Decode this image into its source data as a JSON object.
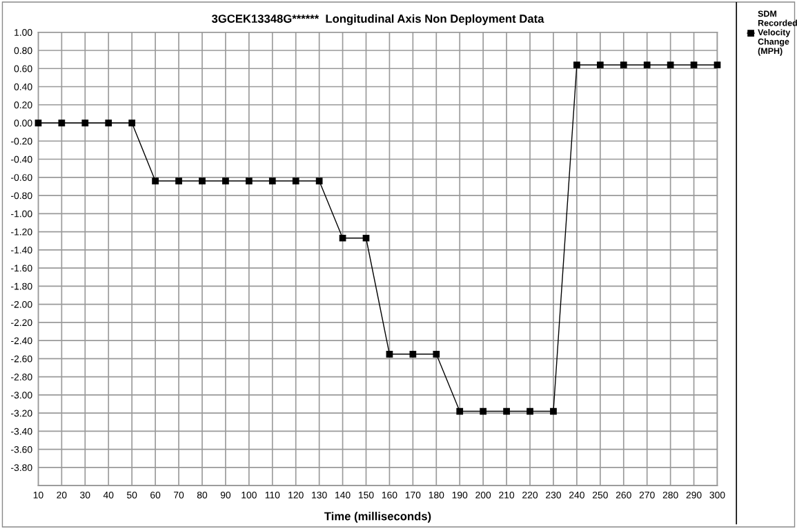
{
  "chart_data": {
    "type": "line",
    "title": "3GCEK13348G******  Longitudinal Axis Non Deployment Data",
    "xlabel": "Time (milliseconds)",
    "categories": [
      "10",
      "20",
      "30",
      "40",
      "50",
      "60",
      "70",
      "80",
      "90",
      "100",
      "110",
      "120",
      "130",
      "140",
      "150",
      "160",
      "170",
      "180",
      "190",
      "200",
      "210",
      "220",
      "230",
      "240",
      "250",
      "260",
      "270",
      "280",
      "290",
      "300"
    ],
    "series": [
      {
        "name": "SDM Recorded Velocity Change (MPH)",
        "color": "#000000",
        "values": [
          0,
          0,
          0,
          0,
          0,
          -0.64,
          -0.64,
          -0.64,
          -0.64,
          -0.64,
          -0.64,
          -0.64,
          -0.64,
          -1.27,
          -1.27,
          -2.55,
          -2.55,
          -2.55,
          -3.18,
          -3.18,
          -3.18,
          -3.18,
          -3.18,
          0.64,
          0.64,
          0.64,
          0.64,
          0.64,
          0.64,
          0.64
        ]
      }
    ],
    "ylim": [
      -4.0,
      1.0
    ],
    "yticks": [
      {
        "value": 1.0,
        "label": "1.00"
      },
      {
        "value": 0.8,
        "label": "0.80"
      },
      {
        "value": 0.6,
        "label": "0.60"
      },
      {
        "value": 0.4,
        "label": "0.40"
      },
      {
        "value": 0.2,
        "label": "0.20"
      },
      {
        "value": 0.0,
        "label": "0.00"
      },
      {
        "value": -0.2,
        "label": "-0.20"
      },
      {
        "value": -0.4,
        "label": "-0.40"
      },
      {
        "value": -0.6,
        "label": "-0.60"
      },
      {
        "value": -0.8,
        "label": "-0.80"
      },
      {
        "value": -1.0,
        "label": "-1.00"
      },
      {
        "value": -1.2,
        "label": "-1.20"
      },
      {
        "value": -1.4,
        "label": "-1.40"
      },
      {
        "value": -1.6,
        "label": "-1.60"
      },
      {
        "value": -1.8,
        "label": "-1.80"
      },
      {
        "value": -2.0,
        "label": "-2.00"
      },
      {
        "value": -2.2,
        "label": "-2.20"
      },
      {
        "value": -2.4,
        "label": "-2.40"
      },
      {
        "value": -2.6,
        "label": "-2.60"
      },
      {
        "value": -2.8,
        "label": "-2.80"
      },
      {
        "value": -3.0,
        "label": "-3.00"
      },
      {
        "value": -3.2,
        "label": "-3.20"
      },
      {
        "value": -3.4,
        "label": "-3.40"
      },
      {
        "value": -3.6,
        "label": "-3.60"
      },
      {
        "value": -3.8,
        "label": "-3.80"
      },
      {
        "value": -4.0,
        "label": null
      }
    ],
    "grid": true,
    "legend": "right",
    "marker": "square",
    "line_style": "solid"
  }
}
